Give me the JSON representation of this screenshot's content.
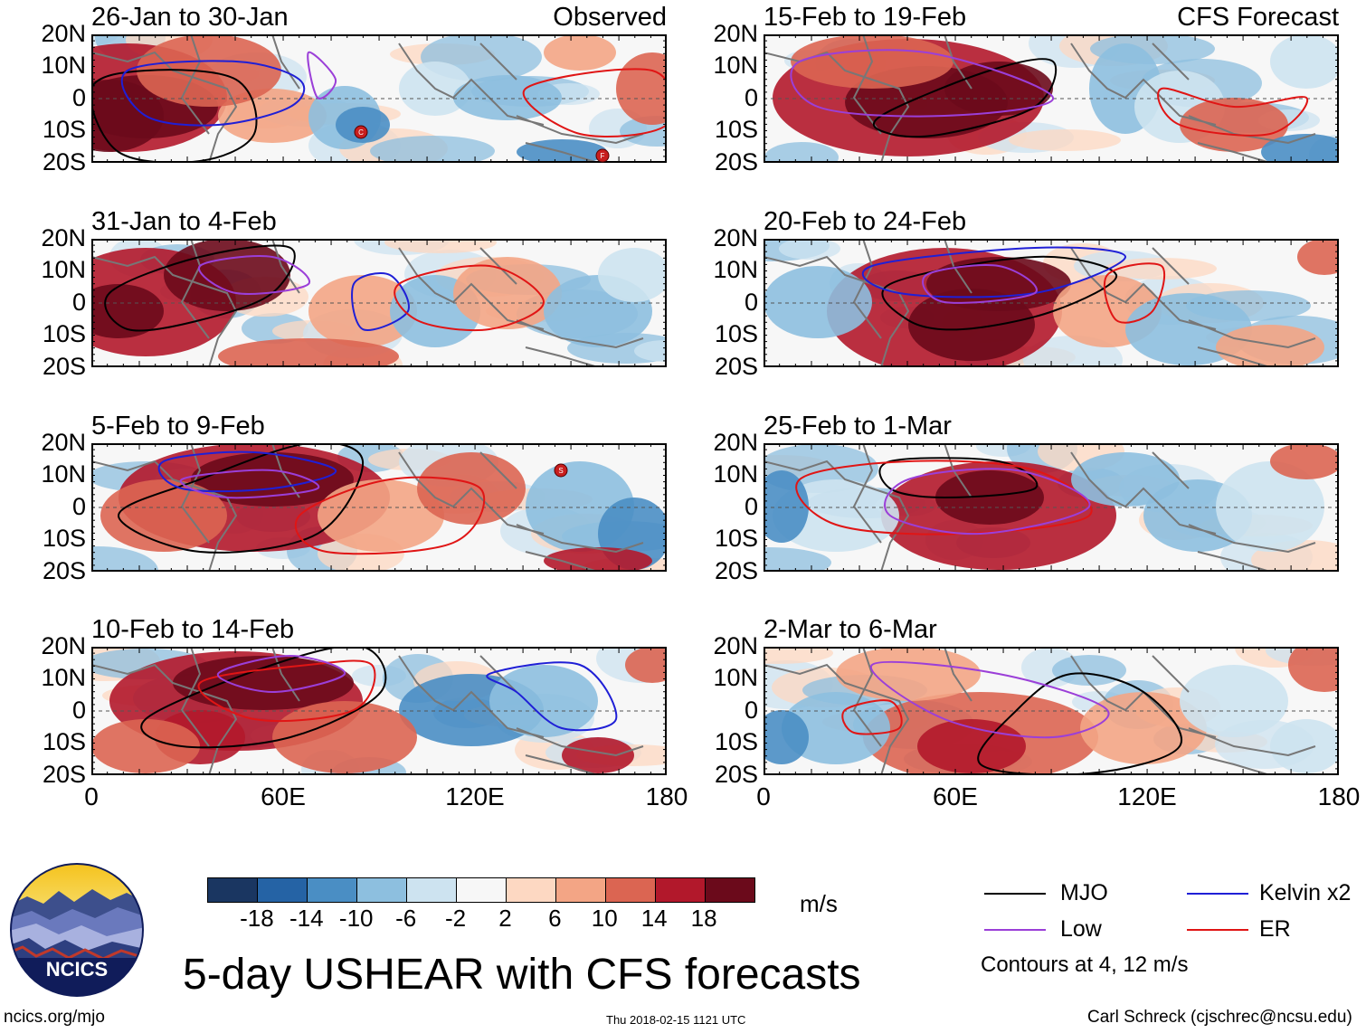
{
  "panels": [
    {
      "title": "26-Jan to 30-Jan",
      "label": "Observed"
    },
    {
      "title": "15-Feb to 19-Feb",
      "label": "CFS Forecast"
    },
    {
      "title": "31-Jan to 4-Feb",
      "label": ""
    },
    {
      "title": "20-Feb to 24-Feb",
      "label": ""
    },
    {
      "title": "5-Feb to 9-Feb",
      "label": ""
    },
    {
      "title": "25-Feb to 1-Mar",
      "label": ""
    },
    {
      "title": "10-Feb to 14-Feb",
      "label": ""
    },
    {
      "title": "2-Mar to 6-Mar",
      "label": ""
    }
  ],
  "lat_labels": [
    "20N",
    "10N",
    "0",
    "10S",
    "20S"
  ],
  "lon_labels": [
    "0",
    "60E",
    "120E",
    "180"
  ],
  "storm_markers": [
    "C",
    "F",
    "S"
  ],
  "colorbar": {
    "colors": [
      "#1a3661",
      "#2563a5",
      "#4a8ec4",
      "#8dbfdf",
      "#cde3f0",
      "#f7f7f7",
      "#fdd8c2",
      "#f3a585",
      "#db6552",
      "#b2182b",
      "#6b0a1b"
    ],
    "labels": [
      "-18",
      "-14",
      "-10",
      "-6",
      "-2",
      "2",
      "6",
      "10",
      "14",
      "18"
    ],
    "units": "m/s"
  },
  "legend": {
    "items": [
      {
        "label": "MJO",
        "color": "#000000"
      },
      {
        "label": "Kelvin x2",
        "color": "#1f1fd6"
      },
      {
        "label": "Low",
        "color": "#9b3fd8"
      },
      {
        "label": "ER",
        "color": "#e01515"
      }
    ],
    "note": "Contours at 4, 12 m/s"
  },
  "title": "5-day USHEAR with CFS forecasts",
  "logo_text": "NCICS",
  "footer": {
    "url": "ncics.org/mjo",
    "timestamp": "Thu 2018-02-15 1121 UTC",
    "author": "Carl Schreck (cjschrec@ncsu.edu)"
  }
}
